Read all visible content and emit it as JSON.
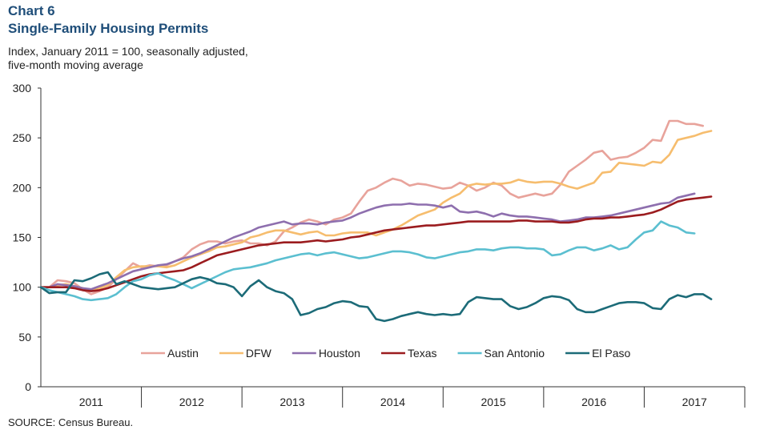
{
  "header": {
    "chart_number": "Chart 6",
    "title": "Single-Family Housing Permits",
    "subtitle": "Index,  January 2011 = 100, seasonally adjusted, five-month  moving average"
  },
  "footer": {
    "source": "SOURCE: Census Bureau."
  },
  "chart_data": {
    "type": "line",
    "title": "Single-Family Housing Permits",
    "xlabel": "",
    "ylabel": "",
    "ylim": [
      0,
      300
    ],
    "yticks": [
      0,
      50,
      100,
      150,
      200,
      250,
      300
    ],
    "year_labels": [
      "2011",
      "2012",
      "2013",
      "2014",
      "2015",
      "2016",
      "2017"
    ],
    "x_start": "2011-01",
    "legend_position": "bottom",
    "grid": false,
    "series": [
      {
        "name": "Austin",
        "color": "#e8a39b",
        "values": [
          100,
          100,
          107,
          106,
          104,
          98,
          93,
          96,
          100,
          108,
          116,
          124,
          120,
          122,
          121,
          122,
          126,
          130,
          138,
          143,
          146,
          146,
          144,
          146,
          147,
          144,
          144,
          142,
          146,
          156,
          160,
          165,
          168,
          166,
          163,
          168,
          170,
          174,
          186,
          197,
          200,
          205,
          209,
          207,
          202,
          204,
          203,
          201,
          199,
          200,
          205,
          202,
          197,
          200,
          205,
          202,
          194,
          190,
          192,
          194,
          192,
          194,
          203,
          216,
          222,
          228,
          235,
          237,
          228,
          230,
          231,
          235,
          240,
          248,
          247,
          267,
          267,
          264,
          264,
          262
        ]
      },
      {
        "name": "DFW",
        "color": "#f6bd6e",
        "values": [
          100,
          100,
          102,
          103,
          101,
          99,
          97,
          99,
          102,
          110,
          117,
          120,
          121,
          121,
          121,
          120,
          122,
          126,
          130,
          133,
          136,
          140,
          141,
          143,
          145,
          150,
          152,
          155,
          157,
          157,
          155,
          153,
          155,
          156,
          152,
          152,
          154,
          155,
          155,
          155,
          152,
          155,
          158,
          162,
          167,
          172,
          175,
          178,
          185,
          190,
          194,
          202,
          204,
          203,
          204,
          204,
          205,
          208,
          206,
          205,
          206,
          206,
          204,
          201,
          199,
          202,
          205,
          215,
          216,
          225,
          224,
          223,
          222,
          226,
          225,
          233,
          248,
          250,
          252,
          255,
          257
        ]
      },
      {
        "name": "Houston",
        "color": "#8e6fae",
        "values": [
          100,
          100,
          103,
          102,
          101,
          99,
          98,
          101,
          104,
          108,
          112,
          116,
          118,
          120,
          122,
          123,
          126,
          129,
          131,
          134,
          138,
          142,
          146,
          150,
          153,
          156,
          160,
          162,
          164,
          166,
          163,
          164,
          164,
          163,
          165,
          166,
          167,
          170,
          174,
          177,
          180,
          182,
          183,
          183,
          184,
          183,
          183,
          182,
          180,
          182,
          176,
          175,
          176,
          174,
          171,
          174,
          172,
          171,
          171,
          170,
          169,
          168,
          166,
          167,
          168,
          170,
          170,
          171,
          172,
          174,
          176,
          178,
          180,
          182,
          184,
          185,
          190,
          192,
          194
        ]
      },
      {
        "name": "Texas",
        "color": "#9b1c1f",
        "values": [
          100,
          100,
          100,
          100,
          99,
          97,
          96,
          97,
          99,
          102,
          105,
          108,
          111,
          113,
          114,
          115,
          116,
          117,
          120,
          124,
          128,
          132,
          134,
          136,
          138,
          140,
          142,
          143,
          144,
          145,
          145,
          145,
          146,
          147,
          146,
          147,
          148,
          150,
          151,
          153,
          155,
          157,
          158,
          159,
          160,
          161,
          162,
          162,
          163,
          164,
          165,
          166,
          166,
          166,
          166,
          166,
          166,
          167,
          167,
          166,
          166,
          166,
          165,
          165,
          166,
          168,
          169,
          169,
          170,
          170,
          171,
          172,
          173,
          175,
          178,
          182,
          186,
          188,
          189,
          190,
          191
        ]
      },
      {
        "name": "San Antonio",
        "color": "#5bbfd0",
        "values": [
          100,
          97,
          95,
          93,
          91,
          88,
          87,
          88,
          89,
          93,
          100,
          106,
          108,
          112,
          114,
          110,
          107,
          103,
          99,
          103,
          107,
          111,
          115,
          118,
          119,
          120,
          122,
          124,
          127,
          129,
          131,
          133,
          134,
          132,
          134,
          135,
          133,
          131,
          129,
          130,
          132,
          134,
          136,
          136,
          135,
          133,
          130,
          129,
          131,
          133,
          135,
          136,
          138,
          138,
          137,
          139,
          140,
          140,
          139,
          139,
          138,
          132,
          133,
          137,
          140,
          140,
          137,
          139,
          142,
          138,
          140,
          148,
          155,
          157,
          166,
          162,
          160,
          155,
          154
        ]
      },
      {
        "name": "El Paso",
        "color": "#1c6b78",
        "values": [
          100,
          94,
          95,
          95,
          107,
          106,
          109,
          113,
          115,
          103,
          106,
          103,
          100,
          99,
          98,
          99,
          100,
          104,
          108,
          110,
          108,
          104,
          103,
          100,
          91,
          101,
          107,
          100,
          96,
          94,
          88,
          72,
          74,
          78,
          80,
          84,
          86,
          85,
          81,
          80,
          68,
          66,
          68,
          71,
          73,
          75,
          73,
          72,
          73,
          72,
          73,
          85,
          90,
          89,
          88,
          88,
          81,
          78,
          80,
          84,
          89,
          91,
          90,
          87,
          78,
          75,
          75,
          78,
          81,
          84,
          85,
          85,
          84,
          79,
          78,
          88,
          92,
          90,
          93,
          93,
          88
        ]
      }
    ]
  }
}
